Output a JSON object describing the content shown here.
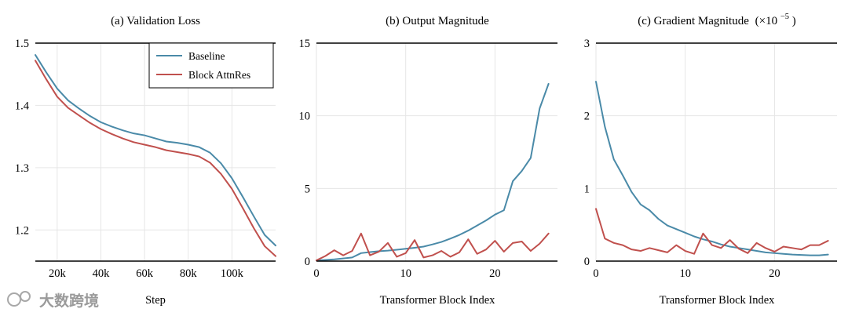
{
  "colors": {
    "baseline": "#4a8aa8",
    "attnres": "#c0504d",
    "grid": "#e6e6e6"
  },
  "watermark": "大数跨境",
  "chart_data": [
    {
      "type": "line",
      "title": "(a) Validation Loss",
      "xlabel": "Step",
      "ylabel": "",
      "xlim": [
        10000,
        120000
      ],
      "ylim": [
        1.15,
        1.5
      ],
      "xticks": [
        20000,
        40000,
        60000,
        80000,
        100000
      ],
      "xtick_labels": [
        "20k",
        "40k",
        "60k",
        "80k",
        "100k"
      ],
      "yticks": [
        1.2,
        1.3,
        1.4,
        1.5
      ],
      "ytick_labels": [
        "1.2",
        "1.3",
        "1.4",
        "1.5"
      ],
      "grid": true,
      "legend": {
        "placement": "top-right",
        "entries": [
          "Baseline",
          "Block AttnRes"
        ]
      },
      "series": [
        {
          "name": "Baseline",
          "color_key": "baseline",
          "x": [
            10000,
            15000,
            20000,
            25000,
            30000,
            35000,
            40000,
            45000,
            50000,
            55000,
            60000,
            65000,
            70000,
            75000,
            80000,
            85000,
            90000,
            95000,
            100000,
            105000,
            110000,
            115000,
            120000
          ],
          "y": [
            1.481,
            1.453,
            1.427,
            1.408,
            1.395,
            1.383,
            1.373,
            1.366,
            1.36,
            1.355,
            1.352,
            1.347,
            1.342,
            1.34,
            1.337,
            1.333,
            1.324,
            1.307,
            1.283,
            1.253,
            1.222,
            1.192,
            1.175
          ]
        },
        {
          "name": "Block AttnRes",
          "color_key": "attnres",
          "x": [
            10000,
            15000,
            20000,
            25000,
            30000,
            35000,
            40000,
            45000,
            50000,
            55000,
            60000,
            65000,
            70000,
            75000,
            80000,
            85000,
            90000,
            95000,
            100000,
            105000,
            110000,
            115000,
            120000
          ],
          "y": [
            1.472,
            1.442,
            1.414,
            1.396,
            1.384,
            1.372,
            1.362,
            1.354,
            1.347,
            1.341,
            1.337,
            1.333,
            1.328,
            1.325,
            1.322,
            1.318,
            1.308,
            1.29,
            1.266,
            1.235,
            1.203,
            1.174,
            1.158
          ]
        }
      ]
    },
    {
      "type": "line",
      "title": "(b) Output Magnitude",
      "xlabel": "Transformer Block Index",
      "ylabel": "",
      "xlim": [
        0,
        27
      ],
      "ylim": [
        0,
        15
      ],
      "xticks": [
        0,
        10,
        20
      ],
      "xtick_labels": [
        "0",
        "10",
        "20"
      ],
      "yticks": [
        0,
        5,
        10,
        15
      ],
      "ytick_labels": [
        "0",
        "5",
        "10",
        "15"
      ],
      "grid": true,
      "series": [
        {
          "name": "Baseline",
          "color_key": "baseline",
          "x": [
            0,
            1,
            2,
            3,
            4,
            5,
            6,
            7,
            8,
            9,
            10,
            11,
            12,
            13,
            14,
            15,
            16,
            17,
            18,
            19,
            20,
            21,
            22,
            23,
            24,
            25,
            26
          ],
          "y": [
            0.05,
            0.08,
            0.12,
            0.18,
            0.25,
            0.55,
            0.62,
            0.68,
            0.72,
            0.78,
            0.85,
            0.92,
            1.0,
            1.15,
            1.32,
            1.55,
            1.8,
            2.1,
            2.45,
            2.8,
            3.2,
            3.5,
            5.5,
            6.2,
            7.1,
            10.5,
            12.2
          ]
        },
        {
          "name": "Block AttnRes",
          "color_key": "attnres",
          "x": [
            0,
            1,
            2,
            3,
            4,
            5,
            6,
            7,
            8,
            9,
            10,
            11,
            12,
            13,
            14,
            15,
            16,
            17,
            18,
            19,
            20,
            21,
            22,
            23,
            24,
            25,
            26
          ],
          "y": [
            0.05,
            0.35,
            0.75,
            0.4,
            0.7,
            1.9,
            0.4,
            0.65,
            1.25,
            0.3,
            0.55,
            1.45,
            0.25,
            0.4,
            0.7,
            0.3,
            0.6,
            1.5,
            0.5,
            0.8,
            1.4,
            0.65,
            1.25,
            1.35,
            0.7,
            1.2,
            1.9
          ]
        }
      ]
    },
    {
      "type": "line",
      "title": "(c) Gradient Magnitude",
      "title_unit_base": "(×10",
      "title_unit_exp": "−5",
      "title_unit_close": ")",
      "xlabel": "Transformer Block Index",
      "ylabel": "",
      "xlim": [
        0,
        27
      ],
      "ylim": [
        0,
        3
      ],
      "xticks": [
        0,
        10,
        20
      ],
      "xtick_labels": [
        "0",
        "10",
        "20"
      ],
      "yticks": [
        0,
        1,
        2,
        3
      ],
      "ytick_labels": [
        "0",
        "1",
        "2",
        "3"
      ],
      "grid": true,
      "series": [
        {
          "name": "Baseline",
          "color_key": "baseline",
          "x": [
            0,
            1,
            2,
            3,
            4,
            5,
            6,
            7,
            8,
            9,
            10,
            11,
            12,
            13,
            14,
            15,
            16,
            17,
            18,
            19,
            20,
            21,
            22,
            23,
            24,
            25,
            26
          ],
          "y": [
            2.47,
            1.85,
            1.4,
            1.18,
            0.95,
            0.78,
            0.7,
            0.58,
            0.49,
            0.44,
            0.39,
            0.34,
            0.3,
            0.27,
            0.23,
            0.2,
            0.18,
            0.16,
            0.14,
            0.12,
            0.11,
            0.1,
            0.09,
            0.085,
            0.08,
            0.08,
            0.09
          ]
        },
        {
          "name": "Block AttnRes",
          "color_key": "attnres",
          "x": [
            0,
            1,
            2,
            3,
            4,
            5,
            6,
            7,
            8,
            9,
            10,
            11,
            12,
            13,
            14,
            15,
            16,
            17,
            18,
            19,
            20,
            21,
            22,
            23,
            24,
            25,
            26
          ],
          "y": [
            0.72,
            0.31,
            0.25,
            0.22,
            0.16,
            0.14,
            0.18,
            0.15,
            0.12,
            0.22,
            0.14,
            0.1,
            0.38,
            0.22,
            0.18,
            0.29,
            0.17,
            0.11,
            0.25,
            0.18,
            0.13,
            0.2,
            0.18,
            0.16,
            0.22,
            0.22,
            0.28
          ]
        }
      ]
    }
  ]
}
